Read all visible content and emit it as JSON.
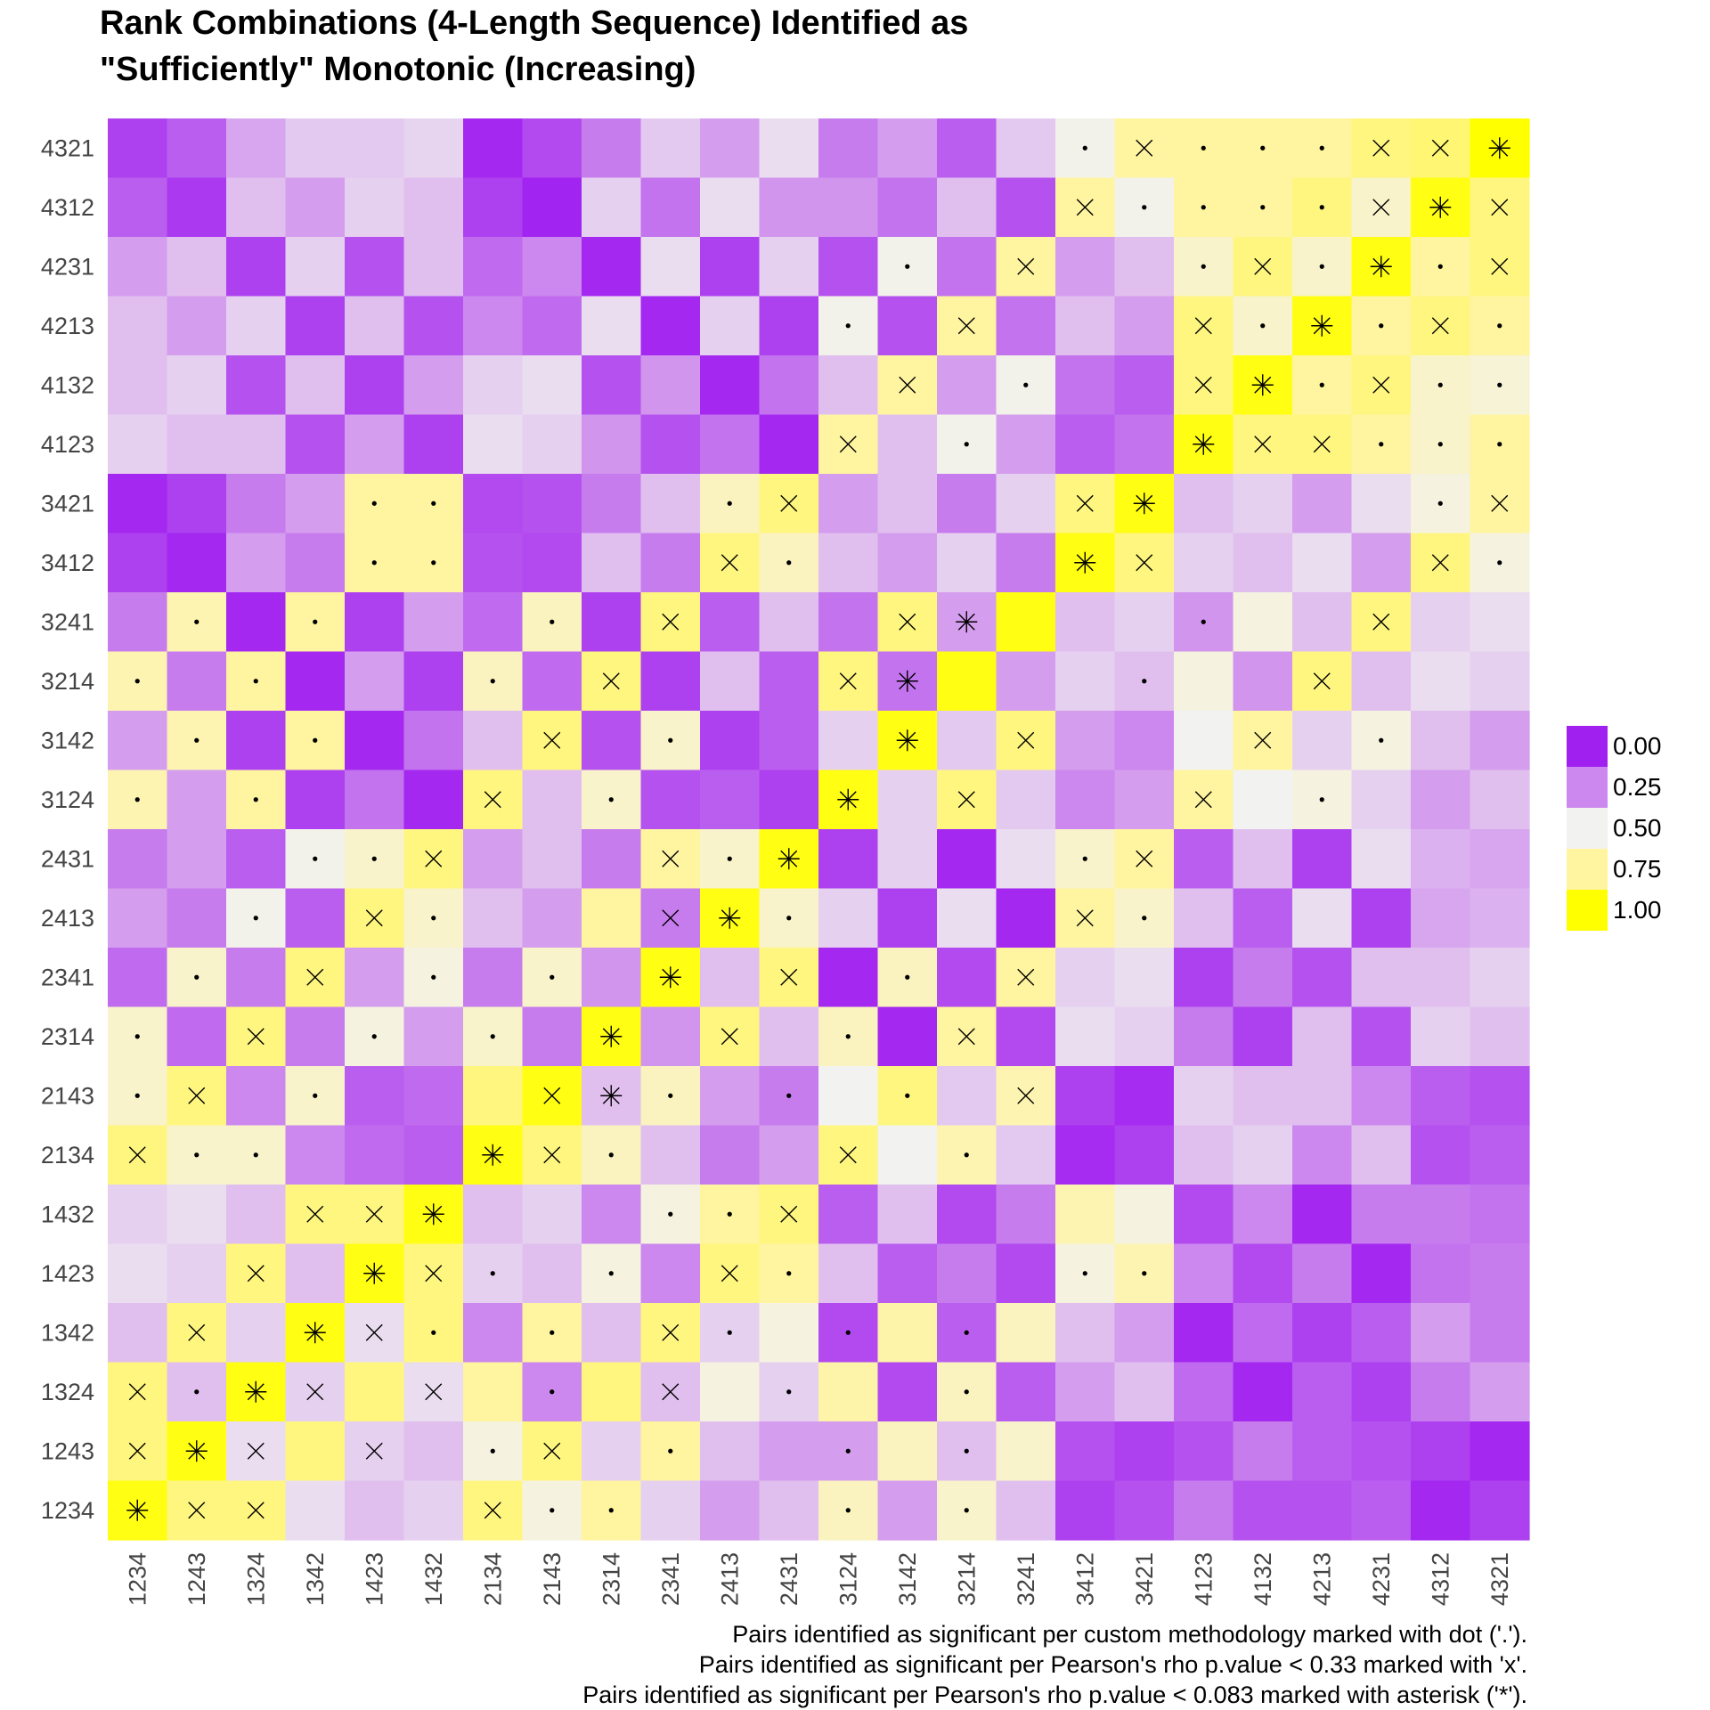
{
  "chart_data": {
    "type": "heatmap",
    "title": "Rank Combinations (4-Length Sequence) Identified as\n\"Sufficiently\" Monotonic (Increasing)",
    "x_labels": [
      "1234",
      "1243",
      "1324",
      "1342",
      "1423",
      "1432",
      "2134",
      "2143",
      "2314",
      "2341",
      "2413",
      "2431",
      "3124",
      "3142",
      "3214",
      "3241",
      "3412",
      "3421",
      "4123",
      "4132",
      "4213",
      "4231",
      "4312",
      "4321"
    ],
    "y_labels": [
      "1234",
      "1243",
      "1324",
      "1342",
      "1423",
      "1432",
      "2134",
      "2143",
      "2314",
      "2341",
      "2413",
      "2431",
      "3124",
      "3142",
      "3214",
      "3241",
      "3412",
      "3421",
      "4123",
      "4132",
      "4213",
      "4231",
      "4312",
      "4321"
    ],
    "scale": {
      "min": 0,
      "max": 1,
      "colors": [
        "#a020f0",
        "#cc88ee",
        "#f2f2f0",
        "#fff4a0",
        "#ffff00"
      ],
      "stops": [
        0.0,
        0.25,
        0.5,
        0.75,
        1.0
      ]
    },
    "legend": {
      "labels": [
        "0.00",
        "0.25",
        "0.50",
        "0.75",
        "1.00"
      ],
      "position": "right"
    },
    "marker_symbols": {
      "dot": "•",
      "cross": "×",
      "asterisk": "*"
    },
    "values_rows_top_to_bottom": [
      [
        0.08,
        0.15,
        0.32,
        0.4,
        0.4,
        0.43,
        0.02,
        0.1,
        0.22,
        0.4,
        0.3,
        0.45,
        0.22,
        0.3,
        0.15,
        0.4,
        0.52,
        0.75,
        0.75,
        0.75,
        0.75,
        0.8,
        0.82,
        1.0
      ],
      [
        0.15,
        0.06,
        0.38,
        0.3,
        0.42,
        0.38,
        0.08,
        0.01,
        0.42,
        0.2,
        0.45,
        0.28,
        0.28,
        0.2,
        0.38,
        0.12,
        0.75,
        0.52,
        0.75,
        0.75,
        0.8,
        0.62,
        0.97,
        0.8
      ],
      [
        0.3,
        0.38,
        0.08,
        0.42,
        0.12,
        0.38,
        0.18,
        0.25,
        0.02,
        0.45,
        0.08,
        0.42,
        0.12,
        0.52,
        0.2,
        0.75,
        0.3,
        0.38,
        0.62,
        0.8,
        0.62,
        0.97,
        0.75,
        0.8
      ],
      [
        0.38,
        0.3,
        0.42,
        0.08,
        0.38,
        0.12,
        0.25,
        0.18,
        0.45,
        0.02,
        0.42,
        0.08,
        0.52,
        0.12,
        0.75,
        0.2,
        0.38,
        0.3,
        0.8,
        0.62,
        0.97,
        0.75,
        0.8,
        0.75
      ],
      [
        0.38,
        0.42,
        0.12,
        0.38,
        0.08,
        0.3,
        0.42,
        0.45,
        0.12,
        0.28,
        0.02,
        0.2,
        0.38,
        0.75,
        0.3,
        0.52,
        0.2,
        0.15,
        0.8,
        0.97,
        0.75,
        0.8,
        0.62,
        0.58
      ],
      [
        0.42,
        0.38,
        0.38,
        0.12,
        0.3,
        0.08,
        0.45,
        0.42,
        0.28,
        0.12,
        0.2,
        0.02,
        0.75,
        0.38,
        0.52,
        0.3,
        0.15,
        0.2,
        0.97,
        0.8,
        0.8,
        0.75,
        0.62,
        0.75
      ],
      [
        0.02,
        0.08,
        0.22,
        0.3,
        0.75,
        0.75,
        0.1,
        0.12,
        0.22,
        0.38,
        0.65,
        0.8,
        0.3,
        0.38,
        0.22,
        0.42,
        0.8,
        0.97,
        0.38,
        0.42,
        0.3,
        0.45,
        0.55,
        0.75
      ],
      [
        0.08,
        0.02,
        0.3,
        0.22,
        0.75,
        0.75,
        0.12,
        0.1,
        0.38,
        0.22,
        0.8,
        0.65,
        0.38,
        0.3,
        0.42,
        0.22,
        0.97,
        0.8,
        0.42,
        0.38,
        0.45,
        0.3,
        0.8,
        0.55
      ],
      [
        0.22,
        0.7,
        0.02,
        0.75,
        0.08,
        0.3,
        0.18,
        0.65,
        0.08,
        0.8,
        0.15,
        0.38,
        0.2,
        0.8,
        0.3,
        0.97,
        0.38,
        0.42,
        0.28,
        0.55,
        0.38,
        0.8,
        0.42,
        0.45
      ],
      [
        0.7,
        0.22,
        0.75,
        0.02,
        0.3,
        0.08,
        0.65,
        0.18,
        0.8,
        0.08,
        0.38,
        0.15,
        0.8,
        0.2,
        0.97,
        0.3,
        0.42,
        0.38,
        0.55,
        0.28,
        0.8,
        0.38,
        0.45,
        0.42
      ],
      [
        0.3,
        0.7,
        0.08,
        0.75,
        0.02,
        0.2,
        0.38,
        0.8,
        0.12,
        0.62,
        0.08,
        0.15,
        0.42,
        0.97,
        0.4,
        0.8,
        0.3,
        0.25,
        0.5,
        0.75,
        0.42,
        0.55,
        0.38,
        0.3
      ],
      [
        0.7,
        0.3,
        0.75,
        0.08,
        0.2,
        0.02,
        0.8,
        0.38,
        0.62,
        0.12,
        0.15,
        0.08,
        0.97,
        0.42,
        0.8,
        0.4,
        0.25,
        0.3,
        0.75,
        0.5,
        0.55,
        0.42,
        0.3,
        0.38
      ],
      [
        0.22,
        0.3,
        0.15,
        0.52,
        0.62,
        0.8,
        0.3,
        0.38,
        0.22,
        0.75,
        0.62,
        0.97,
        0.08,
        0.42,
        0.02,
        0.45,
        0.62,
        0.75,
        0.15,
        0.38,
        0.08,
        0.45,
        0.35,
        0.32
      ],
      [
        0.3,
        0.22,
        0.52,
        0.15,
        0.8,
        0.62,
        0.38,
        0.3,
        0.75,
        0.22,
        0.97,
        0.62,
        0.42,
        0.08,
        0.45,
        0.02,
        0.75,
        0.62,
        0.38,
        0.15,
        0.45,
        0.08,
        0.32,
        0.35
      ],
      [
        0.18,
        0.62,
        0.22,
        0.8,
        0.3,
        0.55,
        0.22,
        0.62,
        0.28,
        0.97,
        0.38,
        0.8,
        0.02,
        0.65,
        0.1,
        0.75,
        0.42,
        0.45,
        0.08,
        0.22,
        0.12,
        0.38,
        0.38,
        0.42
      ],
      [
        0.62,
        0.18,
        0.8,
        0.22,
        0.55,
        0.3,
        0.62,
        0.22,
        0.97,
        0.28,
        0.8,
        0.38,
        0.65,
        0.02,
        0.75,
        0.1,
        0.45,
        0.42,
        0.22,
        0.08,
        0.38,
        0.12,
        0.42,
        0.38
      ],
      [
        0.62,
        0.8,
        0.25,
        0.62,
        0.15,
        0.18,
        0.8,
        0.97,
        0.38,
        0.65,
        0.3,
        0.22,
        0.5,
        0.8,
        0.4,
        0.7,
        0.08,
        0.03,
        0.42,
        0.38,
        0.38,
        0.25,
        0.15,
        0.12
      ],
      [
        0.8,
        0.62,
        0.62,
        0.25,
        0.18,
        0.15,
        0.97,
        0.8,
        0.65,
        0.38,
        0.22,
        0.3,
        0.8,
        0.5,
        0.7,
        0.4,
        0.03,
        0.08,
        0.38,
        0.42,
        0.25,
        0.38,
        0.12,
        0.15
      ],
      [
        0.42,
        0.45,
        0.38,
        0.8,
        0.8,
        0.97,
        0.38,
        0.42,
        0.25,
        0.55,
        0.75,
        0.8,
        0.15,
        0.38,
        0.1,
        0.22,
        0.7,
        0.55,
        0.1,
        0.25,
        0.02,
        0.22,
        0.22,
        0.2
      ],
      [
        0.45,
        0.42,
        0.8,
        0.38,
        0.97,
        0.8,
        0.42,
        0.38,
        0.55,
        0.25,
        0.8,
        0.75,
        0.38,
        0.15,
        0.22,
        0.1,
        0.55,
        0.7,
        0.25,
        0.1,
        0.22,
        0.02,
        0.2,
        0.22
      ],
      [
        0.38,
        0.8,
        0.42,
        0.97,
        0.45,
        0.8,
        0.25,
        0.75,
        0.38,
        0.8,
        0.42,
        0.55,
        0.1,
        0.72,
        0.15,
        0.65,
        0.38,
        0.3,
        0.02,
        0.18,
        0.08,
        0.15,
        0.3,
        0.22
      ],
      [
        0.8,
        0.38,
        0.97,
        0.42,
        0.8,
        0.45,
        0.75,
        0.25,
        0.8,
        0.38,
        0.55,
        0.42,
        0.72,
        0.1,
        0.65,
        0.15,
        0.3,
        0.38,
        0.18,
        0.02,
        0.15,
        0.08,
        0.22,
        0.3
      ],
      [
        0.8,
        0.97,
        0.45,
        0.8,
        0.42,
        0.38,
        0.55,
        0.8,
        0.42,
        0.75,
        0.38,
        0.3,
        0.3,
        0.65,
        0.38,
        0.62,
        0.12,
        0.08,
        0.12,
        0.22,
        0.15,
        0.12,
        0.08,
        0.02
      ],
      [
        0.97,
        0.8,
        0.8,
        0.45,
        0.38,
        0.42,
        0.8,
        0.55,
        0.75,
        0.42,
        0.3,
        0.38,
        0.65,
        0.3,
        0.62,
        0.38,
        0.08,
        0.12,
        0.22,
        0.12,
        0.12,
        0.15,
        0.02,
        0.08
      ]
    ],
    "markers_rows_top_to_bottom": [
      "0000000000000000dxdddxxa",
      "0000000000000000xddddxax",
      "0000000000000d0x00dxdadx",
      "000000000000d0x000xdadxd",
      "0000000000000x0d00xadxdd",
      "000000000000x0d000axxddd",
      "0000dd0000dx0000xa0000dx",
      "0000dd0000xd0000ax0000xd",
      "0d0d000d0x000xa000d00x00",
      "d0d000d0x000xa000d00x000",
      "0d0d000x0d000a0x000x0d00",
      "d0d000x0d000a0x000x0d000",
      "000ddx000xda0000dx000000",
      "00d0xd000xad0000xd000000",
      "0d0x0d0d0a0x0d0x00000000",
      "d0x0d0d0a0x0d0x000000000",
      "dx0d000xad0d0d0x00000000",
      "xdd000axd000x0d000000000",
      "000xxa000ddx000000000000",
      "00x0axd0d0xd0000dd000000",
      "0x0axd0d0xd0d0d000000000",
      "xdax0x0d0x0d00d000000000",
      "xax0x0dx0d00d0d000000000",
      "axx000xdd000d0d000000000"
    ]
  },
  "caption": {
    "line1": "Pairs identified as significant per custom methodology marked with dot ('.').",
    "line2": "Pairs identified as significant per Pearson's rho p.value < 0.33 marked with 'x'.",
    "line3": "Pairs identified as significant per Pearson's rho p.value < 0.083 marked with asterisk ('*')."
  }
}
